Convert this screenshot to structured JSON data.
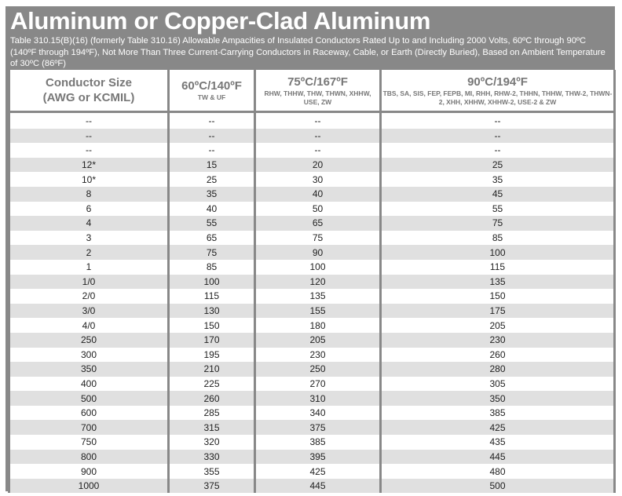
{
  "title": "Aluminum or Copper-Clad Aluminum",
  "subtitle": "Table 310.15(B)(16) (formerly Table 310.16) Allowable Ampacities of Insulated Conductors Rated Up to and Including 2000 Volts, 60ºC through 90ºC (140ºF through 194ºF), Not More Than Three Current-Carrying Conductors in Raceway, Cable, or Earth (Directly Buried), Based on Ambient Temperature of 30ºC (86ºF)",
  "columns": [
    {
      "heading": "Conductor Size",
      "heading2": "(AWG or KCMIL)",
      "sub": ""
    },
    {
      "heading": "60ºC/140ºF",
      "heading2": "",
      "sub": "TW & UF"
    },
    {
      "heading": "75ºC/167ºF",
      "heading2": "",
      "sub": "RHW, THHW, THW, THWN, XHHW, USE, ZW"
    },
    {
      "heading": "90ºC/194ºF",
      "heading2": "",
      "sub": "TBS, SA, SIS, FEP, FEPB, MI, RHH, RHW-2, THHN, THHW, THW-2, THWN-2, XHH, XHHW, XHHW-2, USE-2 & ZW"
    }
  ],
  "rows": [
    [
      "--",
      "--",
      "--",
      "--"
    ],
    [
      "--",
      "--",
      "--",
      "--"
    ],
    [
      "--",
      "--",
      "--",
      "--"
    ],
    [
      "12*",
      "15",
      "20",
      "25"
    ],
    [
      "10*",
      "25",
      "30",
      "35"
    ],
    [
      "8",
      "35",
      "40",
      "45"
    ],
    [
      "6",
      "40",
      "50",
      "55"
    ],
    [
      "4",
      "55",
      "65",
      "75"
    ],
    [
      "3",
      "65",
      "75",
      "85"
    ],
    [
      "2",
      "75",
      "90",
      "100"
    ],
    [
      "1",
      "85",
      "100",
      "115"
    ],
    [
      "1/0",
      "100",
      "120",
      "135"
    ],
    [
      "2/0",
      "115",
      "135",
      "150"
    ],
    [
      "3/0",
      "130",
      "155",
      "175"
    ],
    [
      "4/0",
      "150",
      "180",
      "205"
    ],
    [
      "250",
      "170",
      "205",
      "230"
    ],
    [
      "300",
      "195",
      "230",
      "260"
    ],
    [
      "350",
      "210",
      "250",
      "280"
    ],
    [
      "400",
      "225",
      "270",
      "305"
    ],
    [
      "500",
      "260",
      "310",
      "350"
    ],
    [
      "600",
      "285",
      "340",
      "385"
    ],
    [
      "700",
      "315",
      "375",
      "425"
    ],
    [
      "750",
      "320",
      "385",
      "435"
    ],
    [
      "800",
      "330",
      "395",
      "445"
    ],
    [
      "900",
      "355",
      "425",
      "480"
    ],
    [
      "1000",
      "375",
      "445",
      "500"
    ]
  ],
  "colors": {
    "frame": "#888888",
    "stripe": "#e0e0e0",
    "header_text": "#777777"
  }
}
